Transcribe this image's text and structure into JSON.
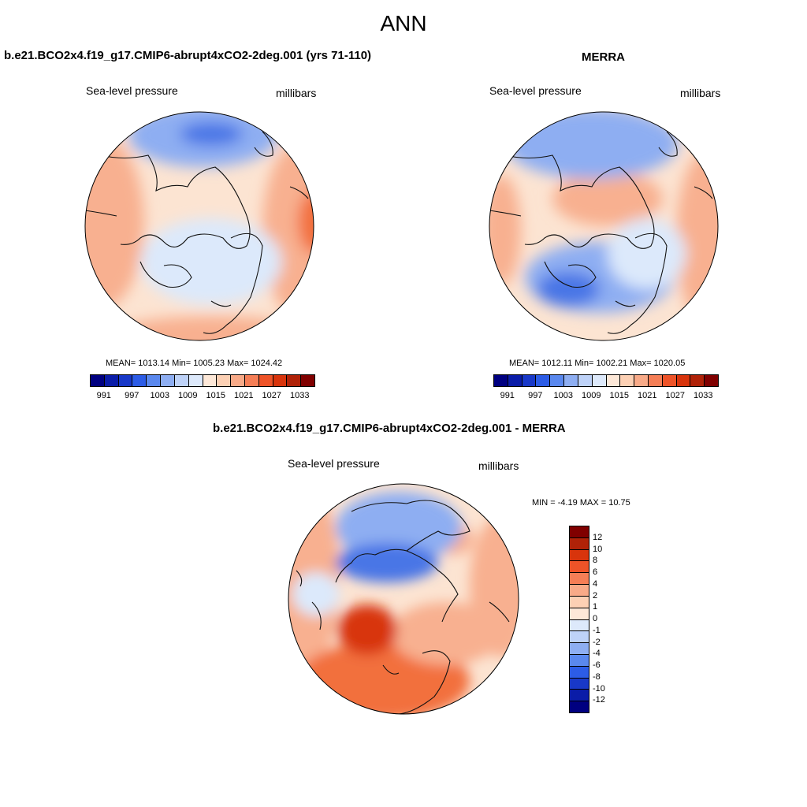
{
  "figure": {
    "title": "ANN",
    "variable": "Sea-level pressure",
    "units": "millibars"
  },
  "panels": {
    "model": {
      "title": "b.e21.BCO2x4.f19_g17.CMIP6-abrupt4xCO2-2deg.001 (yrs 71-110)",
      "stats": "MEAN= 1013.14  Min= 1005.23  Max= 1024.42"
    },
    "obs": {
      "title": "MERRA",
      "stats": "MEAN= 1012.11  Min= 1002.21  Max= 1020.05"
    },
    "diff": {
      "title": "b.e21.BCO2x4.f19_g17.CMIP6-abrupt4xCO2-2deg.001 - MERRA",
      "stats": "MIN =  -4.19 MAX =  10.75"
    }
  },
  "colorbars": {
    "field": {
      "colors": [
        "#000080",
        "#0a1ca8",
        "#1838c8",
        "#2c5ce6",
        "#5a88ee",
        "#8eaef2",
        "#bed2f8",
        "#dde9fb",
        "#fde8d8",
        "#fcd0b4",
        "#f8aa88",
        "#f57e56",
        "#ee5328",
        "#d8340c",
        "#b02208",
        "#800000"
      ],
      "labels": [
        "991",
        "997",
        "1003",
        "1009",
        "1015",
        "1021",
        "1027",
        "1033"
      ]
    },
    "diff": {
      "colors": [
        "#800000",
        "#b02208",
        "#d8340c",
        "#ee5328",
        "#f57e56",
        "#f8aa88",
        "#fcd0b4",
        "#fde8d8",
        "#dde9fb",
        "#bed2f8",
        "#8eaef2",
        "#5a88ee",
        "#2c5ce6",
        "#1838c8",
        "#0a1ca8",
        "#000080"
      ],
      "labels": [
        "12",
        "10",
        "8",
        "6",
        "4",
        "2",
        "1",
        "0",
        "-1",
        "-2",
        "-4",
        "-6",
        "-8",
        "-10",
        "-12"
      ]
    }
  },
  "map_colors": {
    "base_warm": "#fce4d2",
    "warm_mid": "#f8b090",
    "warm_strong": "#f2703e",
    "warm_deep": "#d8340c",
    "cool_light": "#dce9fb",
    "cool_mid": "#8eaef2",
    "cool_strong": "#4a76e6",
    "coast": "#111111"
  }
}
